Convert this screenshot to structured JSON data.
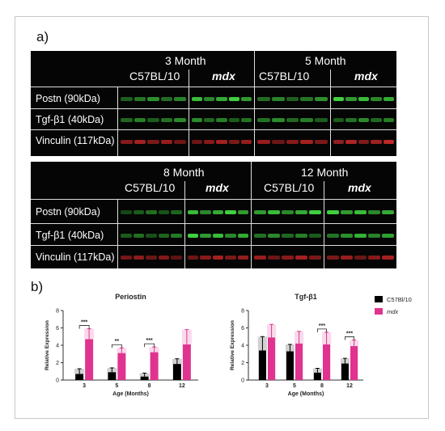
{
  "figure": {
    "label_a": "a)",
    "label_b": "b)"
  },
  "blots": [
    {
      "timepoints": [
        "3 Month",
        "5 Month"
      ],
      "groups": [
        "C57BL/10",
        "mdx",
        "C57BL/10",
        "mdx"
      ],
      "rows": [
        "Postn (90kDa)",
        "Tgf-β1 (40kDa)",
        "Vinculin (117kDa)"
      ]
    },
    {
      "timepoints": [
        "8 Month",
        "12 Month"
      ],
      "groups": [
        "C57BL/10",
        "mdx",
        "C57BL/10",
        "mdx"
      ],
      "rows": [
        "Postn (90kDa)",
        "Tgf-β1 (40kDa)",
        "Vinculin (117kDa)"
      ]
    }
  ],
  "legend": {
    "items": [
      {
        "name": "C57Bl/10",
        "color": "#000000"
      },
      {
        "name": "mdx",
        "color": "#e0338f"
      }
    ]
  },
  "chart_data": [
    {
      "type": "bar",
      "title": "Periostin",
      "xlabel": "Age (Months)",
      "ylabel": "Relative Expression",
      "categories": [
        "3",
        "5",
        "8",
        "12"
      ],
      "ylim": [
        0,
        8
      ],
      "yticks": [
        "0",
        "2",
        "4",
        "6",
        "8"
      ],
      "series": [
        {
          "name": "C57Bl/10",
          "values": [
            0.7,
            0.9,
            0.4,
            1.85
          ],
          "errors": [
            0.6,
            0.5,
            0.4,
            0.6
          ]
        },
        {
          "name": "mdx",
          "values": [
            4.7,
            3.1,
            3.2,
            4.1
          ],
          "errors": [
            1.2,
            0.6,
            0.6,
            1.7
          ]
        }
      ],
      "annotations": [
        {
          "category": "3",
          "text": "***"
        },
        {
          "category": "5",
          "text": "**"
        },
        {
          "category": "8",
          "text": "***"
        }
      ]
    },
    {
      "type": "bar",
      "title": "Tgf-β1",
      "xlabel": "Age (Months)",
      "ylabel": "Relative Expression",
      "categories": [
        "3",
        "5",
        "8",
        "12"
      ],
      "ylim": [
        0,
        8
      ],
      "yticks": [
        "0",
        "2",
        "4",
        "6",
        "8"
      ],
      "series": [
        {
          "name": "C57Bl/10",
          "values": [
            3.4,
            3.3,
            0.85,
            1.9
          ],
          "errors": [
            1.6,
            0.8,
            0.5,
            0.6
          ]
        },
        {
          "name": "mdx",
          "values": [
            4.9,
            4.2,
            4.1,
            3.9
          ],
          "errors": [
            1.5,
            1.4,
            1.4,
            0.7
          ]
        }
      ],
      "annotations": [
        {
          "category": "8",
          "text": "***"
        },
        {
          "category": "12",
          "text": "***"
        }
      ]
    }
  ]
}
